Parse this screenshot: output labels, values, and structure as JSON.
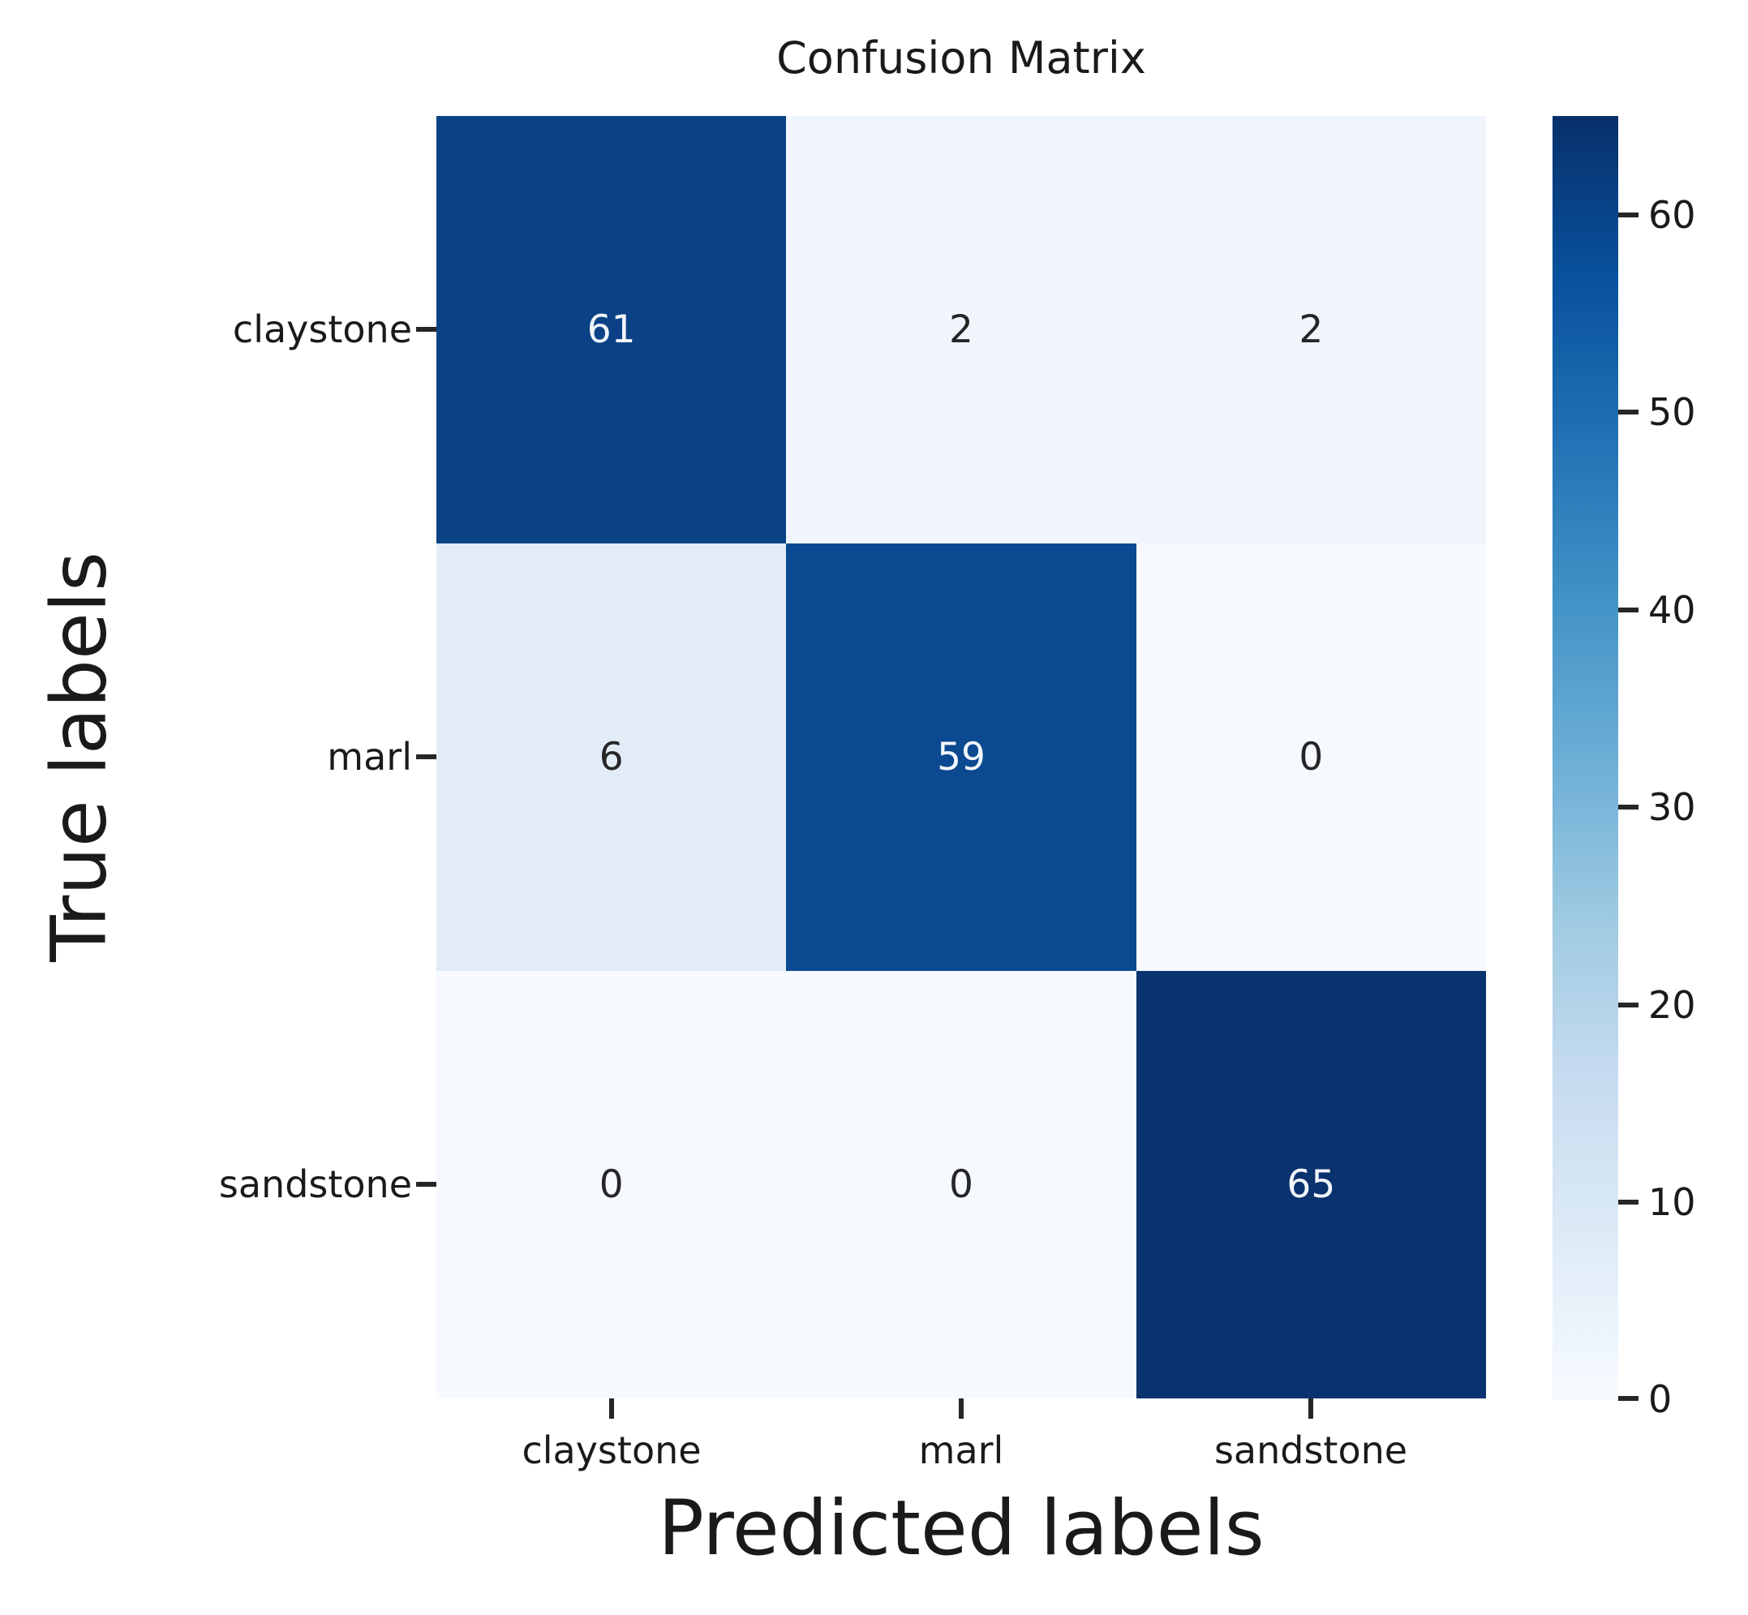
{
  "title": "Confusion Matrix",
  "axes": {
    "x_label": "Predicted labels",
    "y_label": "True labels",
    "x_ticks": [
      "claystone",
      "marl",
      "sandstone"
    ],
    "y_ticks": [
      "claystone",
      "marl",
      "sandstone"
    ]
  },
  "colorbar": {
    "tick_labels": [
      "60",
      "50",
      "40",
      "30",
      "20",
      "10",
      "0"
    ]
  },
  "cells": [
    {
      "value": "61",
      "bg": "#0a4285",
      "fg": "#f2f6fb"
    },
    {
      "value": "2",
      "bg": "#f0f6fc",
      "fg": "#262626"
    },
    {
      "value": "2",
      "bg": "#f0f6fc",
      "fg": "#262626"
    },
    {
      "value": "6",
      "bg": "#e1ecf7",
      "fg": "#262626"
    },
    {
      "value": "59",
      "bg": "#0b4a90",
      "fg": "#f2f6fb"
    },
    {
      "value": "0",
      "bg": "#f6faff",
      "fg": "#262626"
    },
    {
      "value": "0",
      "bg": "#f6faff",
      "fg": "#262626"
    },
    {
      "value": "0",
      "bg": "#f6faff",
      "fg": "#262626"
    },
    {
      "value": "65",
      "bg": "#0a326e",
      "fg": "#f2f6fb"
    }
  ],
  "colors": {
    "colormap_dark": "#08306b",
    "colormap_light": "#f7fbff",
    "text": "#1a1a1a",
    "tick_mark": "#262626"
  },
  "chart_data": {
    "type": "heatmap",
    "title": "Confusion Matrix",
    "xlabel": "Predicted labels",
    "ylabel": "True labels",
    "x_categories": [
      "claystone",
      "marl",
      "sandstone"
    ],
    "y_categories": [
      "claystone",
      "marl",
      "sandstone"
    ],
    "matrix": [
      [
        61,
        2,
        2
      ],
      [
        6,
        59,
        0
      ],
      [
        0,
        0,
        65
      ]
    ],
    "colormap": "Blues",
    "vmin": 0,
    "vmax": 65,
    "colorbar_ticks": [
      0,
      10,
      20,
      30,
      40,
      50,
      60
    ],
    "colorbar_position": "right",
    "grid": false,
    "annotated": true
  }
}
